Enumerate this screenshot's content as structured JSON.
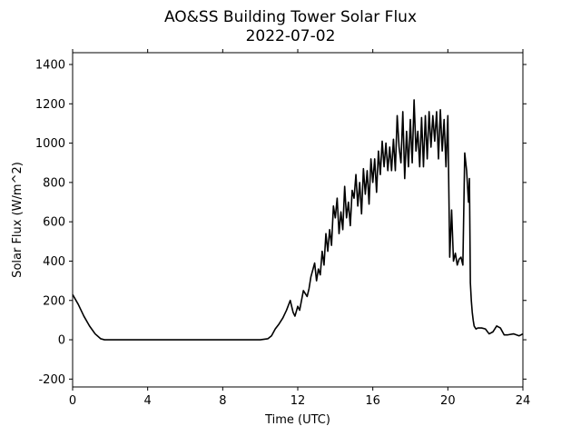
{
  "chart_data": {
    "type": "line",
    "title": "AO&SS Building Tower Solar Flux",
    "subtitle": "2022-07-02",
    "xlabel": "Time (UTC)",
    "ylabel": "Solar Flux (W/m^2)",
    "xlim": [
      0,
      24
    ],
    "ylim": [
      -240,
      1460
    ],
    "xticks": [
      0,
      4,
      8,
      12,
      16,
      20,
      24
    ],
    "yticks": [
      -200,
      0,
      200,
      400,
      600,
      800,
      1000,
      1200,
      1400
    ],
    "grid": false,
    "legend": "none",
    "line_color": "#000000",
    "series": [
      {
        "x": [
          0,
          0.3,
          0.6,
          0.9,
          1.2,
          1.5,
          1.7,
          2,
          4,
          6,
          8,
          10,
          10.4,
          10.6,
          10.8,
          11,
          11.2,
          11.4,
          11.6,
          11.75,
          11.85,
          12,
          12.1,
          12.2,
          12.3,
          12.5,
          12.6,
          12.7,
          12.9,
          13,
          13.1,
          13.2,
          13.3,
          13.4,
          13.5,
          13.6,
          13.7,
          13.8,
          13.9,
          14,
          14.1,
          14.2,
          14.3,
          14.4,
          14.5,
          14.6,
          14.7,
          14.8,
          14.9,
          15,
          15.1,
          15.2,
          15.3,
          15.4,
          15.5,
          15.6,
          15.7,
          15.8,
          15.9,
          16,
          16.1,
          16.2,
          16.3,
          16.4,
          16.5,
          16.6,
          16.7,
          16.8,
          16.9,
          17,
          17.1,
          17.2,
          17.3,
          17.4,
          17.5,
          17.6,
          17.7,
          17.8,
          17.9,
          18,
          18.1,
          18.2,
          18.3,
          18.4,
          18.5,
          18.6,
          18.7,
          18.8,
          18.9,
          19,
          19.1,
          19.2,
          19.3,
          19.4,
          19.5,
          19.6,
          19.7,
          19.8,
          19.9,
          20,
          20.1,
          20.2,
          20.3,
          20.4,
          20.5,
          20.6,
          20.7,
          20.8,
          20.9,
          21,
          21.1,
          21.15,
          21.2,
          21.25,
          21.3,
          21.35,
          21.4,
          21.5,
          21.6,
          21.8,
          22,
          22.2,
          22.4,
          22.6,
          22.8,
          23,
          23.2,
          23.5,
          23.8,
          24
        ],
        "y": [
          230,
          180,
          120,
          70,
          30,
          5,
          0,
          0,
          0,
          0,
          0,
          0,
          5,
          20,
          55,
          80,
          110,
          150,
          200,
          140,
          120,
          170,
          150,
          200,
          250,
          220,
          260,
          320,
          390,
          300,
          360,
          330,
          450,
          380,
          540,
          450,
          560,
          480,
          680,
          620,
          720,
          540,
          650,
          560,
          780,
          620,
          700,
          580,
          760,
          720,
          840,
          680,
          800,
          640,
          870,
          740,
          860,
          690,
          920,
          800,
          920,
          750,
          960,
          840,
          1010,
          880,
          1000,
          860,
          980,
          860,
          1020,
          860,
          1140,
          980,
          900,
          1160,
          820,
          1060,
          880,
          1120,
          900,
          1220,
          960,
          1060,
          880,
          1130,
          880,
          1140,
          920,
          1160,
          980,
          1140,
          1010,
          1160,
          920,
          1170,
          960,
          1120,
          880,
          1140,
          420,
          660,
          400,
          440,
          380,
          410,
          420,
          380,
          950,
          860,
          700,
          820,
          290,
          200,
          140,
          100,
          70,
          55,
          60,
          60,
          55,
          30,
          40,
          70,
          60,
          25,
          25,
          30,
          20,
          30
        ]
      }
    ]
  }
}
